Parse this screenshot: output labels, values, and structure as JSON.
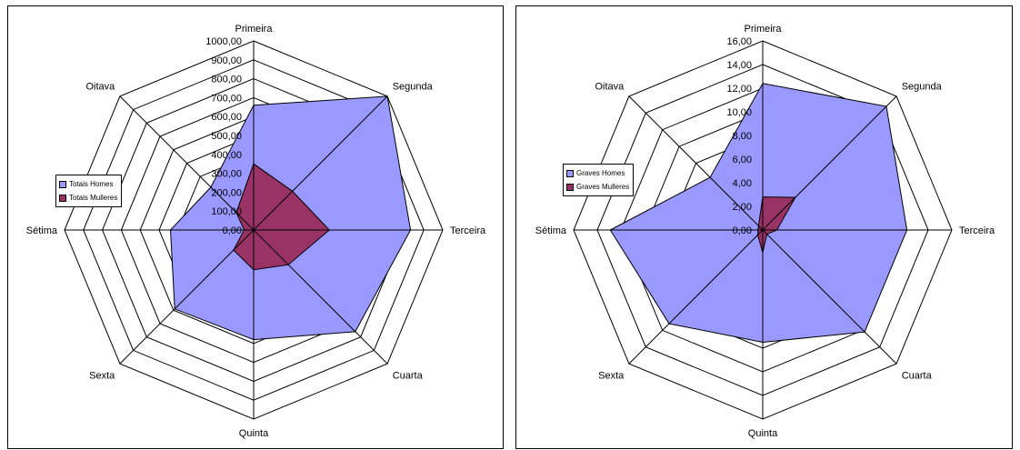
{
  "chart_data": [
    {
      "type": "radar",
      "categories": [
        "Primeira",
        "Segunda",
        "Terceira",
        "Cuarta",
        "Quinta",
        "Sexta",
        "Sétima",
        "Oitava"
      ],
      "ticks": [
        "0,00",
        "100,00",
        "200,00",
        "300,00",
        "400,00",
        "500,00",
        "600,00",
        "700,00",
        "800,00",
        "900,00",
        "1000,00"
      ],
      "rlim": [
        0,
        1000
      ],
      "grid": true,
      "legend_position": "left",
      "series": [
        {
          "name": "Totais Homes",
          "color": "#9999ff",
          "values": [
            660,
            1000,
            830,
            760,
            580,
            590,
            440,
            320
          ]
        },
        {
          "name": "Totais Mulleres",
          "color": "#993366",
          "values": [
            350,
            290,
            400,
            260,
            210,
            150,
            50,
            130
          ]
        }
      ]
    },
    {
      "type": "radar",
      "categories": [
        "Primeira",
        "Segunda",
        "Terceira",
        "Cuarta",
        "Quinta",
        "Sexta",
        "Sétima",
        "Oitava"
      ],
      "ticks": [
        "0,00",
        "2,00",
        "4,00",
        "6,00",
        "8,00",
        "10,00",
        "12,00",
        "14,00",
        "16,00"
      ],
      "rlim": [
        0,
        16
      ],
      "grid": true,
      "legend_position": "left",
      "series": [
        {
          "name": "Graves Homes",
          "color": "#9999ff",
          "values": [
            12.4,
            14.8,
            12.2,
            12.2,
            9.5,
            11.2,
            12.9,
            6.3
          ]
        },
        {
          "name": "Graves Mulleres",
          "color": "#993366",
          "values": [
            2.8,
            3.9,
            1.2,
            0.5,
            1.9,
            0.6,
            0.4,
            0.5
          ]
        }
      ]
    }
  ]
}
